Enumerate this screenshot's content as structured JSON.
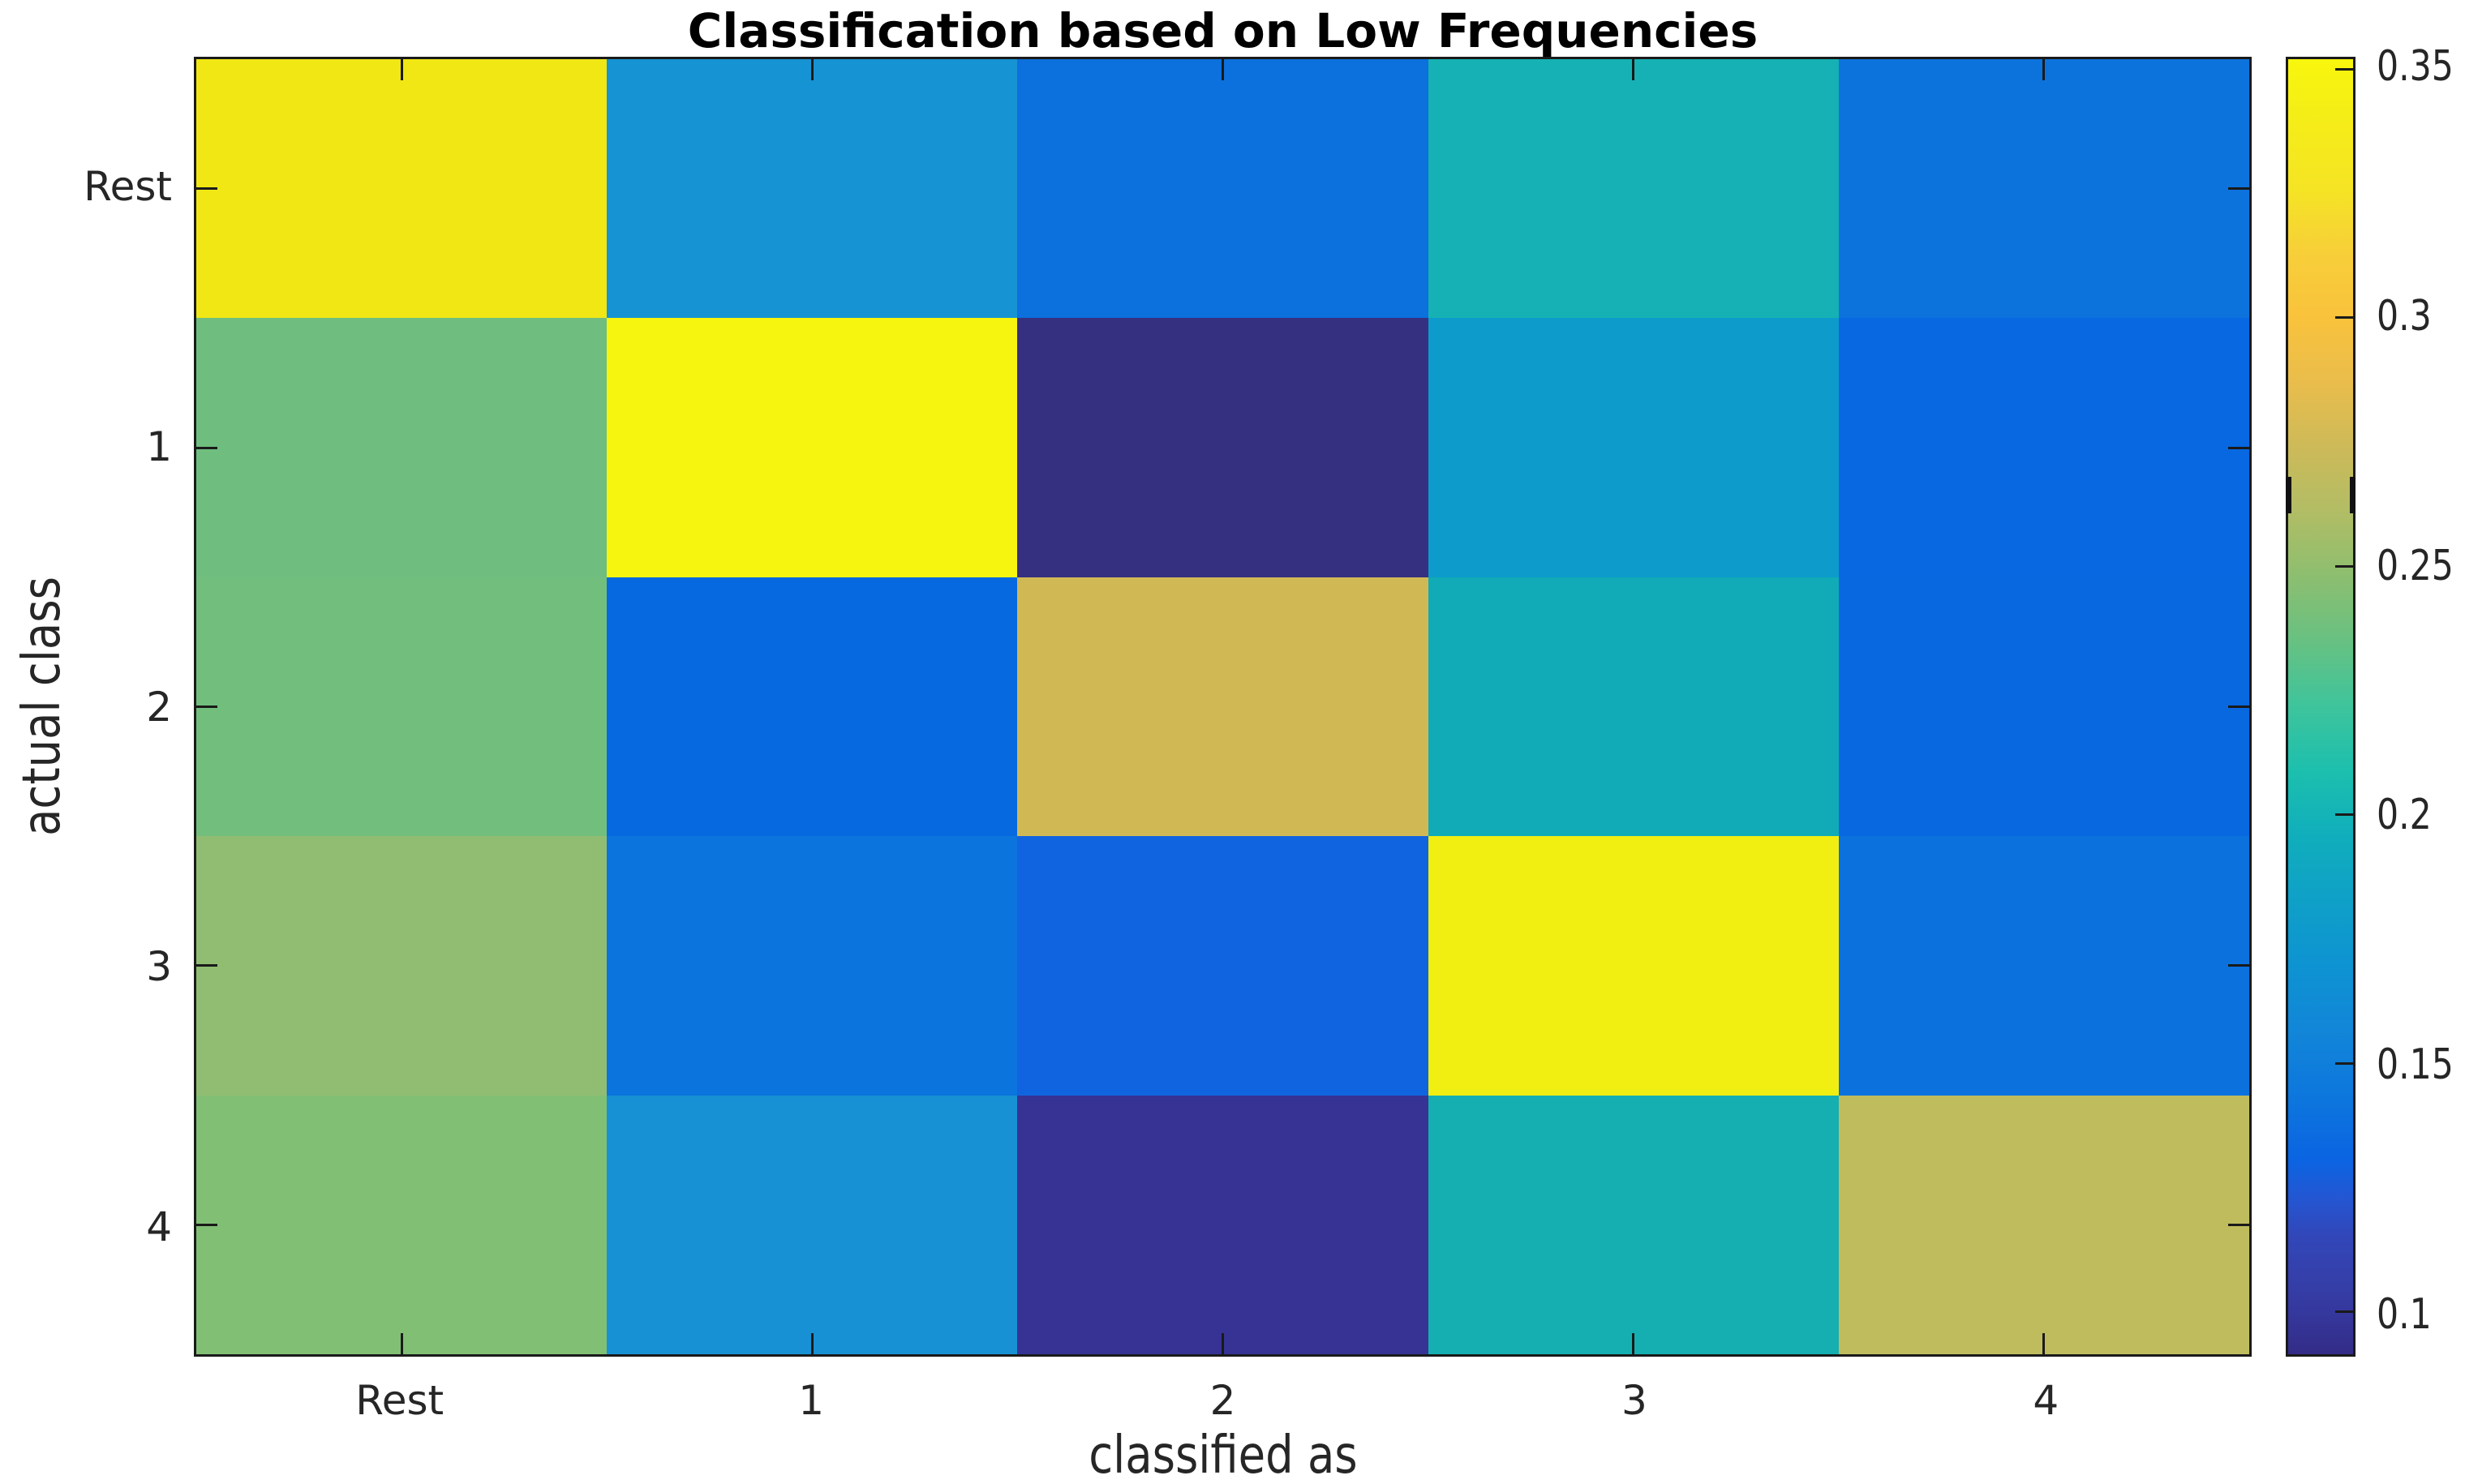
{
  "figure": {
    "background_color": "#ffffff",
    "axis_color": "#1a1a1a",
    "text_color": "#262626",
    "title_color": "#000000"
  },
  "chart_data": {
    "type": "heatmap",
    "title": "Classification based on Low Frequencies",
    "xlabel": "classified as",
    "ylabel": "actual class",
    "x_categories": [
      "Rest",
      "1",
      "2",
      "3",
      "4"
    ],
    "y_categories": [
      "Rest",
      "1",
      "2",
      "3",
      "4"
    ],
    "values": [
      [
        0.33,
        0.16,
        0.13,
        0.19,
        0.13
      ],
      [
        0.235,
        0.35,
        0.095,
        0.165,
        0.125
      ],
      [
        0.235,
        0.125,
        0.28,
        0.185,
        0.125
      ],
      [
        0.25,
        0.13,
        0.125,
        0.345,
        0.13
      ],
      [
        0.24,
        0.16,
        0.105,
        0.19,
        0.265
      ]
    ],
    "cell_colors": [
      [
        "#f0e714",
        "#1693d3",
        "#0c70dd",
        "#16b1b4",
        "#0d73dc"
      ],
      [
        "#6fbe7f",
        "#f5f50f",
        "#35307f",
        "#0d9bcb",
        "#0768e1"
      ],
      [
        "#72bf7d",
        "#0769e0",
        "#d0b955",
        "#10abb6",
        "#0768e0"
      ],
      [
        "#90bd72",
        "#0b74dd",
        "#1164df",
        "#f1ee12",
        "#0b72dd"
      ],
      [
        "#81bf75",
        "#1791d3",
        "#363394",
        "#15afb2",
        "#bfbc5e"
      ]
    ],
    "colormap": "parula",
    "grid": false,
    "legend": null,
    "colorbar": {
      "vmin": 0.0915,
      "vmax": 0.352,
      "tick_values": [
        0.35,
        0.3,
        0.25,
        0.2,
        0.15,
        0.1
      ],
      "tick_labels": [
        "0.35",
        "0.3",
        "0.25",
        "0.2",
        "0.15",
        "0.1"
      ],
      "edge_mark_fraction": {
        "from": 0.3225,
        "to": 0.3505
      },
      "gradient_stops": [
        {
          "pos": 0.0,
          "color": "#f8f60d"
        },
        {
          "pos": 0.04,
          "color": "#f5ee16"
        },
        {
          "pos": 0.1,
          "color": "#f5e424"
        },
        {
          "pos": 0.15,
          "color": "#f7cf39"
        },
        {
          "pos": 0.2,
          "color": "#f9c23c"
        },
        {
          "pos": 0.25,
          "color": "#e9bd4c"
        },
        {
          "pos": 0.3,
          "color": "#cdba59"
        },
        {
          "pos": 0.35,
          "color": "#b1bd65"
        },
        {
          "pos": 0.4,
          "color": "#8cbe70"
        },
        {
          "pos": 0.45,
          "color": "#67c182"
        },
        {
          "pos": 0.5,
          "color": "#3ec49c"
        },
        {
          "pos": 0.55,
          "color": "#1cbfae"
        },
        {
          "pos": 0.6,
          "color": "#10aebc"
        },
        {
          "pos": 0.65,
          "color": "#0fa0c8"
        },
        {
          "pos": 0.7,
          "color": "#0e93d2"
        },
        {
          "pos": 0.75,
          "color": "#1286d8"
        },
        {
          "pos": 0.8,
          "color": "#0d77dd"
        },
        {
          "pos": 0.85,
          "color": "#0b64e2"
        },
        {
          "pos": 0.88,
          "color": "#2456d2"
        },
        {
          "pos": 0.91,
          "color": "#3246b8"
        },
        {
          "pos": 0.94,
          "color": "#3540ab"
        },
        {
          "pos": 0.97,
          "color": "#35379c"
        },
        {
          "pos": 1.0,
          "color": "#342c87"
        }
      ]
    }
  }
}
